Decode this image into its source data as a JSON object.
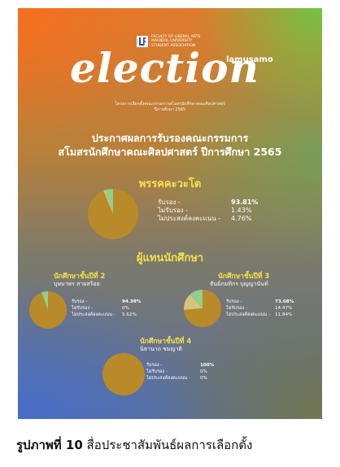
{
  "poster": {
    "logo_text": "FACULTY OF LIBERAL ARTS\nMAHIDOL UNIVERSITY\nSTUDENT ASSOCIATION",
    "title_word": "election",
    "subtitle_right": "lamusamo",
    "org_line1": "โครงการเลือกตั้งคณะกรรมการสโมสรนักศึกษาคณะศิลปศาสตร์",
    "org_line2": "ปีการศึกษา 2565",
    "headline_line1": "ประกาศผลการรับรองคณะกรรมการ",
    "headline_line2": "สโมสรนักศึกษาคณะศิลปศาสตร์ ปีการศึกษา 2565",
    "party_heading": "พรรคคะวะโต",
    "rep_heading": "ผู้แทนนักศึกษา",
    "colors": {
      "pie_main": "#b98a2a",
      "pie_accent": "#8fd08a",
      "pie_third": "#d9c27a",
      "highlight": "#f7e04a"
    }
  },
  "party": {
    "labels": [
      "รับรอง -",
      "ไม่รับรอง -",
      "ไม่ประสงค์ลงคะแนน -"
    ],
    "values": [
      "93.81%",
      "1.43%",
      "4.76%"
    ],
    "shares": [
      93.81,
      1.43,
      4.76
    ]
  },
  "candidates": [
    {
      "year_title": "นักศึกษาชั้นปีที่ 2",
      "name": "บุษบาพร สายสร้อย",
      "labels": [
        "รับรอง -",
        "ไม่รับรอง -",
        "ไม่ประสงค์ลงคะแนน -"
      ],
      "values": [
        "94.38%",
        "0%",
        "5.62%"
      ],
      "shares": [
        94.38,
        0,
        5.62
      ]
    },
    {
      "year_title": "นักศึกษาชั้นปีที่ 3",
      "name": "ธันย์ภมทิกร บุญญานันท์",
      "labels": [
        "รับรอง -",
        "ไม่รับรอง -",
        "ไม่ประสงค์ลงคะแนน -"
      ],
      "values": [
        "73.68%",
        "14.47%",
        "11.84%"
      ],
      "shares": [
        73.68,
        14.47,
        11.84
      ]
    },
    {
      "year_title": "นักศึกษาชั้นปีที่ 4",
      "name": "นิธานาถ ชมญาติ",
      "labels": [
        "รับรอง -",
        "ไม่รับรอง -",
        "ไม่ประสงค์ลงคะแนน -"
      ],
      "values": [
        "100%",
        "0%",
        "0%"
      ],
      "shares": [
        100,
        0,
        0
      ]
    }
  ],
  "caption": {
    "prefix": "รูปภาพที่ 10",
    "text": " สื่อประชาสัมพันธ์ผลการเลือกตั้ง"
  }
}
